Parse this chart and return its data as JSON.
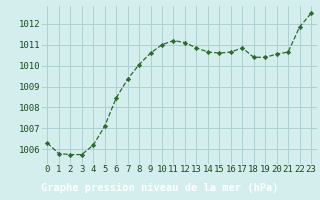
{
  "hours": [
    0,
    1,
    2,
    3,
    4,
    5,
    6,
    7,
    8,
    9,
    10,
    11,
    12,
    13,
    14,
    15,
    16,
    17,
    18,
    19,
    20,
    21,
    22,
    23
  ],
  "pressure": [
    1006.3,
    1005.8,
    1005.75,
    1005.75,
    1006.2,
    1007.1,
    1008.45,
    1009.35,
    1010.05,
    1010.6,
    1011.0,
    1011.2,
    1011.1,
    1010.85,
    1010.65,
    1010.6,
    1010.65,
    1010.85,
    1010.4,
    1010.4,
    1010.55,
    1010.65,
    1011.85,
    1012.5
  ],
  "line_color": "#2d6a2d",
  "marker": "D",
  "marker_size": 2.2,
  "bg_color": "#d4eeee",
  "grid_color": "#aed0d0",
  "label_bg_color": "#1a5c1a",
  "label_text_color": "#ffffff",
  "ylabel_ticks": [
    1006,
    1007,
    1008,
    1009,
    1010,
    1011,
    1012
  ],
  "xlabel": "Graphe pression niveau de la mer (hPa)",
  "xlim": [
    -0.5,
    23.5
  ],
  "ylim": [
    1005.3,
    1012.85
  ],
  "xlabel_fontsize": 7.5,
  "tick_fontsize": 6.5,
  "tick_color": "#1a4a1a"
}
